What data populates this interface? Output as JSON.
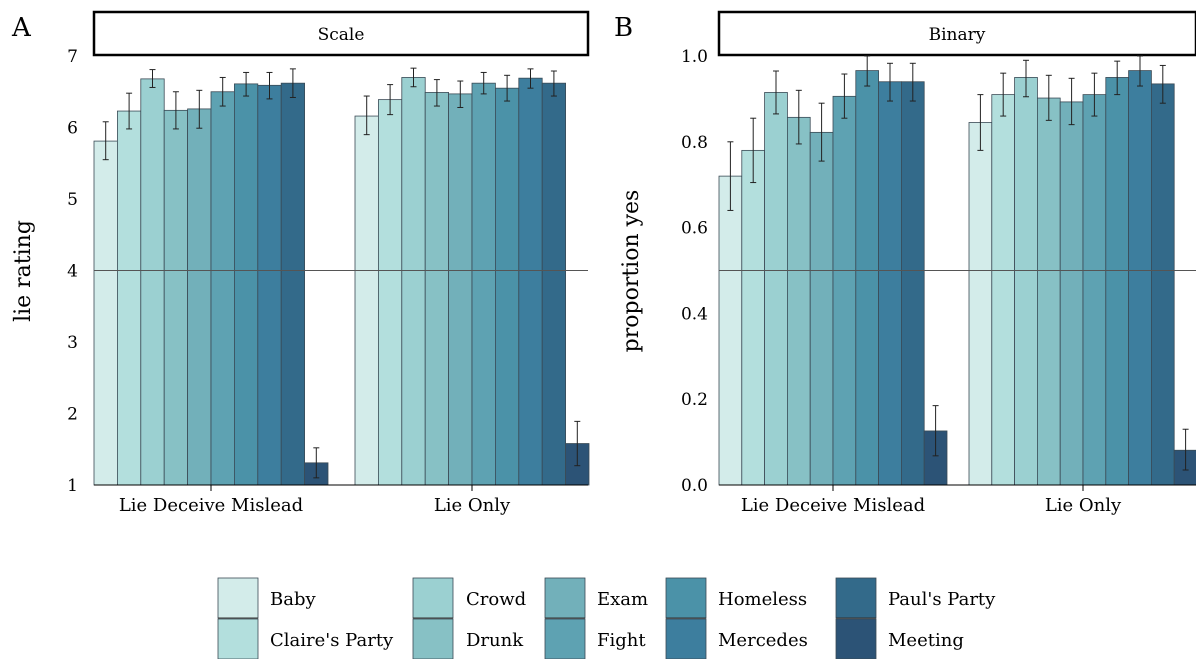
{
  "panels": [
    {
      "letter": "A",
      "strip_title": "Scale",
      "ylabel": "lie rating",
      "ylim": [
        1,
        7
      ],
      "yticks": [
        "1",
        "2",
        "3",
        "4",
        "5",
        "6",
        "7"
      ],
      "yticks_values": [
        1,
        2,
        3,
        4,
        5,
        6,
        7
      ],
      "reference_line": 4
    },
    {
      "letter": "B",
      "strip_title": "Binary",
      "ylabel": "proportion yes",
      "ylim": [
        0,
        1
      ],
      "yticks": [
        "0.0",
        "0.2",
        "0.4",
        "0.6",
        "0.8",
        "1.0"
      ],
      "yticks_values": [
        0,
        0.2,
        0.4,
        0.6,
        0.8,
        1.0
      ],
      "reference_line": 0.5
    }
  ],
  "legend": {
    "items": [
      "Baby",
      "Claire's Party",
      "Crowd",
      "Drunk",
      "Exam",
      "Fight",
      "Homeless",
      "Mercedes",
      "Paul's Party",
      "Meeting"
    ]
  },
  "colors": [
    "#d3ecea",
    "#b3dfdd",
    "#9bd0d1",
    "#87c1c5",
    "#72b0ba",
    "#5ea2b2",
    "#4b92a8",
    "#3d7e9e",
    "#336a8a",
    "#2c5376"
  ],
  "chart_data": [
    {
      "type": "bar",
      "title": "Scale",
      "ylabel": "lie rating",
      "ylim": [
        1,
        7
      ],
      "categories": [
        "Lie Deceive Mislead",
        "Lie Only"
      ],
      "series": [
        {
          "name": "Baby",
          "values": [
            5.81,
            6.16
          ],
          "err": [
            [
              5.55,
              6.08
            ],
            [
              5.9,
              6.44
            ]
          ]
        },
        {
          "name": "Claire's Party",
          "values": [
            6.23,
            6.39
          ],
          "err": [
            [
              5.98,
              6.48
            ],
            [
              6.18,
              6.6
            ]
          ]
        },
        {
          "name": "Crowd",
          "values": [
            6.68,
            6.7
          ],
          "err": [
            [
              6.56,
              6.81
            ],
            [
              6.57,
              6.83
            ]
          ]
        },
        {
          "name": "Drunk",
          "values": [
            6.24,
            6.49
          ],
          "err": [
            [
              5.98,
              6.5
            ],
            [
              6.3,
              6.67
            ]
          ]
        },
        {
          "name": "Exam",
          "values": [
            6.26,
            6.47
          ],
          "err": [
            [
              5.99,
              6.52
            ],
            [
              6.28,
              6.65
            ]
          ]
        },
        {
          "name": "Fight",
          "values": [
            6.5,
            6.62
          ],
          "err": [
            [
              6.3,
              6.7
            ],
            [
              6.47,
              6.77
            ]
          ]
        },
        {
          "name": "Homeless",
          "values": [
            6.61,
            6.55
          ],
          "err": [
            [
              6.44,
              6.77
            ],
            [
              6.37,
              6.73
            ]
          ]
        },
        {
          "name": "Mercedes",
          "values": [
            6.59,
            6.69
          ],
          "err": [
            [
              6.4,
              6.77
            ],
            [
              6.55,
              6.82
            ]
          ]
        },
        {
          "name": "Paul's Party",
          "values": [
            6.62,
            6.62
          ],
          "err": [
            [
              6.42,
              6.82
            ],
            [
              6.44,
              6.79
            ]
          ]
        },
        {
          "name": "Meeting",
          "values": [
            1.31,
            1.58
          ],
          "err": [
            [
              1.1,
              1.52
            ],
            [
              1.27,
              1.89
            ]
          ]
        }
      ],
      "reference_line": 4,
      "legend_position": "bottom"
    },
    {
      "type": "bar",
      "title": "Binary",
      "ylabel": "proportion yes",
      "ylim": [
        0,
        1
      ],
      "categories": [
        "Lie Deceive Mislead",
        "Lie Only"
      ],
      "series": [
        {
          "name": "Baby",
          "values": [
            0.72,
            0.845
          ],
          "err": [
            [
              0.64,
              0.8
            ],
            [
              0.78,
              0.91
            ]
          ]
        },
        {
          "name": "Claire's Party",
          "values": [
            0.78,
            0.91
          ],
          "err": [
            [
              0.705,
              0.855
            ],
            [
              0.86,
              0.96
            ]
          ]
        },
        {
          "name": "Crowd",
          "values": [
            0.915,
            0.95
          ],
          "err": [
            [
              0.865,
              0.965
            ],
            [
              0.905,
              0.99
            ]
          ]
        },
        {
          "name": "Drunk",
          "values": [
            0.857,
            0.902
          ],
          "err": [
            [
              0.795,
              0.92
            ],
            [
              0.85,
              0.955
            ]
          ]
        },
        {
          "name": "Exam",
          "values": [
            0.822,
            0.893
          ],
          "err": [
            [
              0.755,
              0.89
            ],
            [
              0.84,
              0.948
            ]
          ]
        },
        {
          "name": "Fight",
          "values": [
            0.906,
            0.91
          ],
          "err": [
            [
              0.855,
              0.958
            ],
            [
              0.86,
              0.96
            ]
          ]
        },
        {
          "name": "Homeless",
          "values": [
            0.966,
            0.95
          ],
          "err": [
            [
              0.93,
              1.0
            ],
            [
              0.91,
              0.988
            ]
          ]
        },
        {
          "name": "Mercedes",
          "values": [
            0.94,
            0.966
          ],
          "err": [
            [
              0.895,
              0.983
            ],
            [
              0.93,
              1.0
            ]
          ]
        },
        {
          "name": "Paul's Party",
          "values": [
            0.94,
            0.935
          ],
          "err": [
            [
              0.895,
              0.983
            ],
            [
              0.89,
              0.978
            ]
          ]
        },
        {
          "name": "Meeting",
          "values": [
            0.126,
            0.081
          ],
          "err": [
            [
              0.068,
              0.185
            ],
            [
              0.035,
              0.13
            ]
          ]
        }
      ],
      "reference_line": 0.5,
      "legend_position": "bottom"
    }
  ]
}
